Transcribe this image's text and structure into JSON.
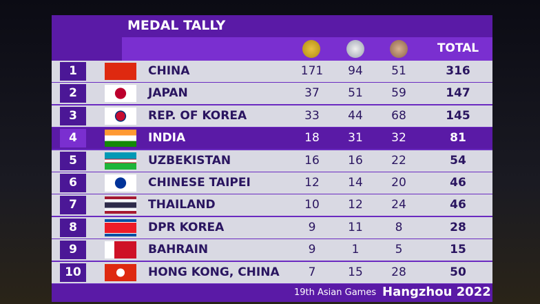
{
  "header": {
    "title": "MEDAL TALLY",
    "total_label": "TOTAL"
  },
  "table": {
    "rows": [
      [
        "1",
        "CHINA",
        "171",
        "94",
        "51",
        "316"
      ],
      [
        "2",
        "JAPAN",
        "37",
        "51",
        "59",
        "147"
      ],
      [
        "3",
        "REP. OF KOREA",
        "33",
        "44",
        "68",
        "145"
      ],
      [
        "4",
        "INDIA",
        "18",
        "31",
        "32",
        "81"
      ],
      [
        "5",
        "UZBEKISTAN",
        "16",
        "16",
        "22",
        "54"
      ],
      [
        "6",
        "CHINESE TAIPEI",
        "12",
        "14",
        "20",
        "46"
      ],
      [
        "7",
        "THAILAND",
        "10",
        "12",
        "24",
        "46"
      ],
      [
        "8",
        "DPR KOREA",
        "9",
        "11",
        "8",
        "28"
      ],
      [
        "9",
        "BAHRAIN",
        "9",
        "1",
        "5",
        "15"
      ],
      [
        "10",
        "HONG KONG, CHINA",
        "7",
        "15",
        "28",
        "50"
      ]
    ]
  },
  "footer": {
    "event": "19th Asian Games",
    "city": "Hangzhou 2022"
  }
}
